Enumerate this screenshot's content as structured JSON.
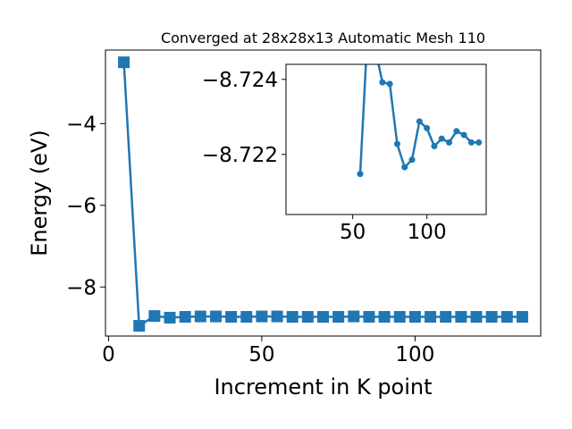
{
  "chart_data": [
    {
      "type": "line",
      "title": "Converged at 28x28x13 Automatic Mesh 110",
      "xlabel": "Increment in K point",
      "ylabel": "Energy (eV)",
      "xlim": [
        -1,
        141
      ],
      "ylim": [
        -9.2,
        -2.2
      ],
      "xticks": [
        0,
        50,
        100
      ],
      "yticks": [
        -8,
        -6,
        -4
      ],
      "ytick_labels": [
        "−8",
        "−6",
        "−4"
      ],
      "grid": false,
      "color": "#1f77b4",
      "marker": "square",
      "x": [
        5,
        10,
        15,
        20,
        25,
        30,
        35,
        40,
        45,
        50,
        55,
        60,
        65,
        70,
        75,
        80,
        85,
        90,
        95,
        100,
        105,
        110,
        115,
        120,
        125,
        130,
        135
      ],
      "y": [
        -2.5,
        -8.95,
        -8.71,
        -8.75,
        -8.73,
        -8.72,
        -8.72,
        -8.73,
        -8.73,
        -8.72,
        -8.72,
        -8.73,
        -8.73,
        -8.73,
        -8.73,
        -8.72,
        -8.73,
        -8.73,
        -8.73,
        -8.73,
        -8.73,
        -8.73,
        -8.73,
        -8.73,
        -8.73,
        -8.73,
        -8.73
      ]
    },
    {
      "type": "line",
      "title": "",
      "xlabel": "",
      "ylabel": "",
      "xlim": [
        5,
        140
      ],
      "ylim": [
        -8.7204,
        -8.7244
      ],
      "xticks": [
        50,
        100
      ],
      "yticks": [
        -8.722,
        -8.724
      ],
      "ytick_labels": [
        "−8.722",
        "−8.724"
      ],
      "grid": false,
      "color": "#1f77b4",
      "marker": "circle",
      "x": [
        55,
        60,
        65,
        70,
        75,
        80,
        85,
        90,
        95,
        100,
        105,
        110,
        115,
        120,
        125,
        130,
        135
      ],
      "y": [
        -8.72148,
        -8.72526,
        -8.72484,
        -8.72392,
        -8.72388,
        -8.72228,
        -8.72166,
        -8.72186,
        -8.72288,
        -8.7227,
        -8.72222,
        -8.72242,
        -8.72232,
        -8.72262,
        -8.72252,
        -8.72232,
        -8.72232
      ]
    }
  ]
}
